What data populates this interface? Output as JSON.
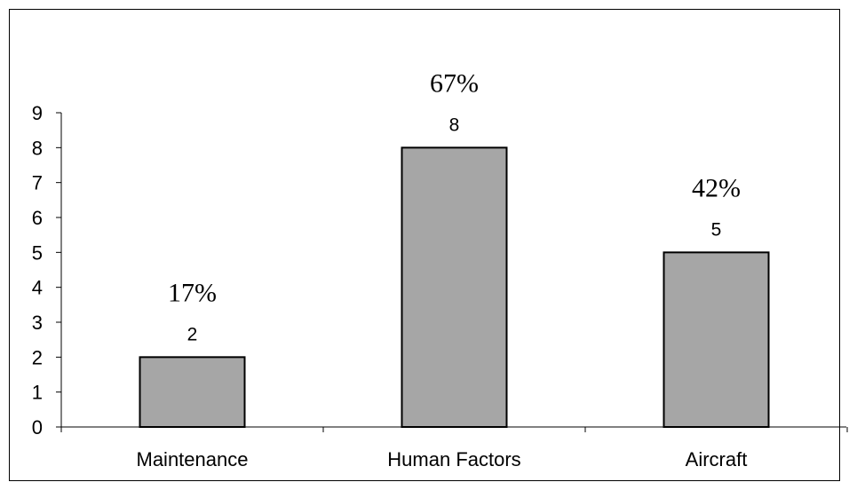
{
  "chart_data": {
    "type": "bar",
    "categories": [
      "Maintenance",
      "Human Factors",
      "Aircraft"
    ],
    "values": [
      2,
      8,
      5
    ],
    "data_labels": [
      "2",
      "8",
      "5"
    ],
    "percent_labels": [
      "17%",
      "67%",
      "42%"
    ],
    "y_ticks": [
      "0",
      "1",
      "2",
      "3",
      "4",
      "5",
      "6",
      "7",
      "8",
      "9"
    ],
    "ylim": [
      0,
      9
    ],
    "grid": false,
    "legend": "none",
    "colors": {
      "bar_fill": "#a6a6a6",
      "bar_stroke": "#000000",
      "axis": "#000000",
      "text": "#000000",
      "frame": "#000000"
    }
  }
}
